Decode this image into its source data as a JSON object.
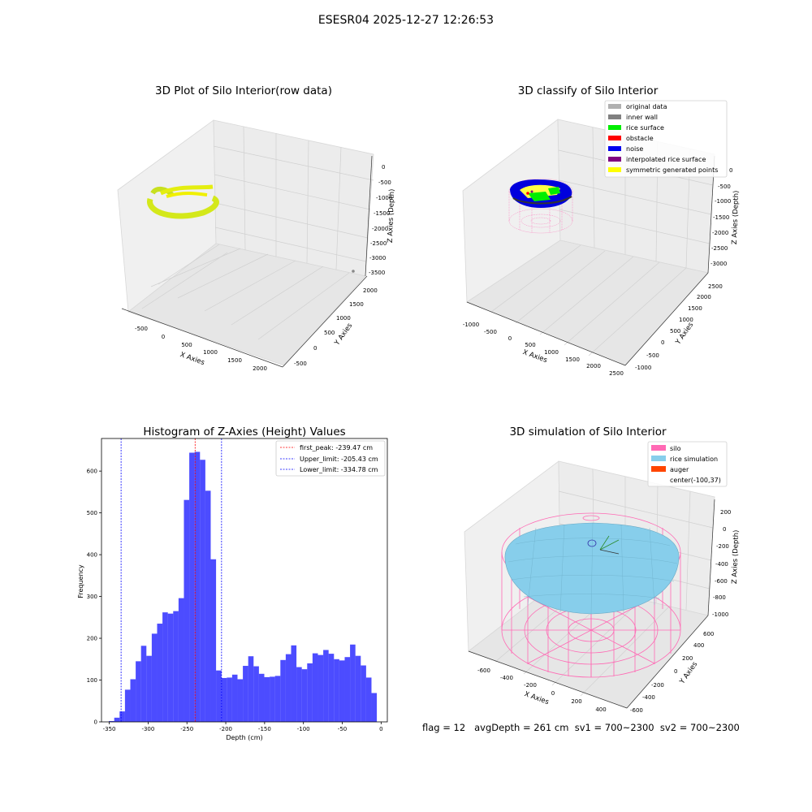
{
  "suptitle": "ESESR04 2025-12-27 12:26:53",
  "footer": "flag = 12   avgDepth = 261 cm  sv1 = 700~2300  sv2 = 700~2300",
  "panel1": {
    "title": "3D Plot of Silo Interior(row data)",
    "xlabel": "X Axies",
    "ylabel": "Y Axies",
    "zlabel": "Z Axies (Depth)",
    "xticks": [
      "-500",
      "0",
      "500",
      "1000",
      "1500",
      "2000"
    ],
    "yticks": [
      "-500",
      "0",
      "500",
      "1000",
      "1500",
      "2000"
    ],
    "zticks": [
      "0",
      "-500",
      "-1000",
      "-1500",
      "-2000",
      "-2500",
      "-3000",
      "-3500"
    ]
  },
  "panel2": {
    "title": "3D classify of Silo Interior",
    "xlabel": "X Axies",
    "ylabel": "Y Axies",
    "zlabel": "Z Axies (Depth)",
    "xticks": [
      "-1000",
      "-500",
      "0",
      "500",
      "1000",
      "1500",
      "2000",
      "2500"
    ],
    "yticks": [
      "-1000",
      "-500",
      "0",
      "500",
      "1000",
      "1500",
      "2000",
      "2500"
    ],
    "zticks": [
      "0",
      "-500",
      "-1000",
      "-1500",
      "-2000",
      "-2500",
      "-3000"
    ],
    "legend": [
      {
        "label": "original data",
        "color": "#b0b0b0"
      },
      {
        "label": "inner wall",
        "color": "#808080"
      },
      {
        "label": "rice surface",
        "color": "#00ee00"
      },
      {
        "label": "obstacle",
        "color": "#ff0000"
      },
      {
        "label": "noise",
        "color": "#0000ee"
      },
      {
        "label": "interpolated rice surface",
        "color": "#800080"
      },
      {
        "label": "symmetric generated points",
        "color": "#ffff00"
      }
    ]
  },
  "panel4": {
    "title": "3D simulation of Silo Interior",
    "xlabel": "X Axies",
    "ylabel": "Y Axies",
    "zlabel": "Z Axies (Depth)",
    "xticks": [
      "-600",
      "-400",
      "-200",
      "0",
      "200",
      "400"
    ],
    "yticks": [
      "-600",
      "-400",
      "-200",
      "0",
      "200",
      "400",
      "600"
    ],
    "zticks": [
      "200",
      "0",
      "-200",
      "-400",
      "-600",
      "-800",
      "-1000"
    ],
    "legend": [
      {
        "label": "silo",
        "color": "#ff69b4"
      },
      {
        "label": "rice simulation",
        "color": "#87ceeb"
      },
      {
        "label": "auger",
        "color": "#ff4500"
      },
      {
        "label": "center(-100,37)",
        "color": null
      }
    ]
  },
  "chart_data": [
    {
      "type": "bar",
      "title": "Histogram of Z-Axies (Height) Values",
      "xlabel": "Depth (cm)",
      "ylabel": "Frequency",
      "bar_color": "#0000ff",
      "bin_start": -350.5,
      "bin_width": 6.9,
      "values": [
        2,
        10,
        25,
        77,
        102,
        145,
        182,
        158,
        211,
        235,
        262,
        259,
        265,
        296,
        531,
        644,
        646,
        627,
        553,
        389,
        123,
        105,
        106,
        113,
        102,
        134,
        157,
        133,
        115,
        107,
        108,
        110,
        148,
        162,
        183,
        131,
        126,
        140,
        164,
        160,
        172,
        163,
        150,
        147,
        155,
        185,
        158,
        135,
        106,
        69
      ],
      "xlim": [
        -360,
        8
      ],
      "ylim": [
        0,
        678
      ],
      "xticks": [
        -350,
        -300,
        -250,
        -200,
        -150,
        -100,
        -50,
        0
      ],
      "yticks": [
        0,
        100,
        200,
        300,
        400,
        500,
        600
      ],
      "vlines": [
        {
          "label": "first_peak: -239.47 cm",
          "x": -239.47,
          "color": "#ff0000"
        },
        {
          "label": "Upper_limit: -205.43 cm",
          "x": -205.43,
          "color": "#0000ff"
        },
        {
          "label": "Lower_limit: -334.78 cm",
          "x": -334.78,
          "color": "#0000ff"
        }
      ],
      "legend_position": "upper right"
    }
  ]
}
